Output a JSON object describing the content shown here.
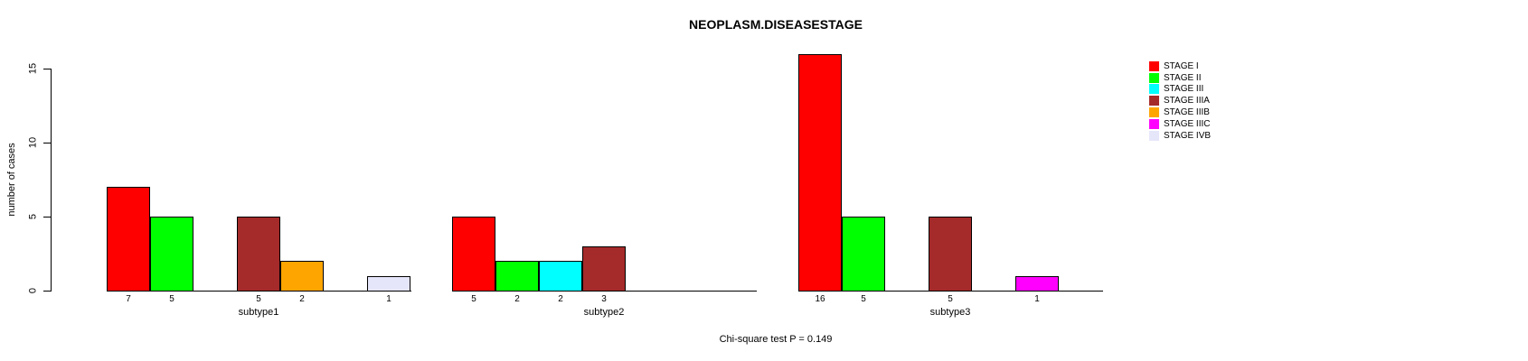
{
  "chart_data": {
    "type": "bar",
    "title": "NEOPLASM.DISEASESTAGE",
    "xlabel": "",
    "ylabel": "number of cases",
    "ylim": [
      0,
      15
    ],
    "yticks": [
      0,
      5,
      10,
      15
    ],
    "grid": false,
    "legend_position": "right",
    "legend_frame": false,
    "bar_value_labels": "shown under each nonzero bar",
    "annotation": "Chi-square test P = 0.149",
    "categories": [
      "subtype1",
      "subtype2",
      "subtype3"
    ],
    "series": [
      {
        "name": "STAGE I",
        "color": "#FF0000",
        "values": [
          7,
          5,
          16
        ]
      },
      {
        "name": "STAGE II",
        "color": "#00FF00",
        "values": [
          5,
          2,
          5
        ]
      },
      {
        "name": "STAGE III",
        "color": "#00FFFF",
        "values": [
          0,
          2,
          0
        ]
      },
      {
        "name": "STAGE IIIA",
        "color": "#A52A2A",
        "values": [
          5,
          3,
          5
        ]
      },
      {
        "name": "STAGE IIIB",
        "color": "#FFA500",
        "values": [
          2,
          0,
          0
        ]
      },
      {
        "name": "STAGE IIIC",
        "color": "#FF00FF",
        "values": [
          0,
          0,
          1
        ]
      },
      {
        "name": "STAGE IVB",
        "color": "#E6E6FA",
        "values": [
          1,
          0,
          0
        ]
      }
    ]
  }
}
